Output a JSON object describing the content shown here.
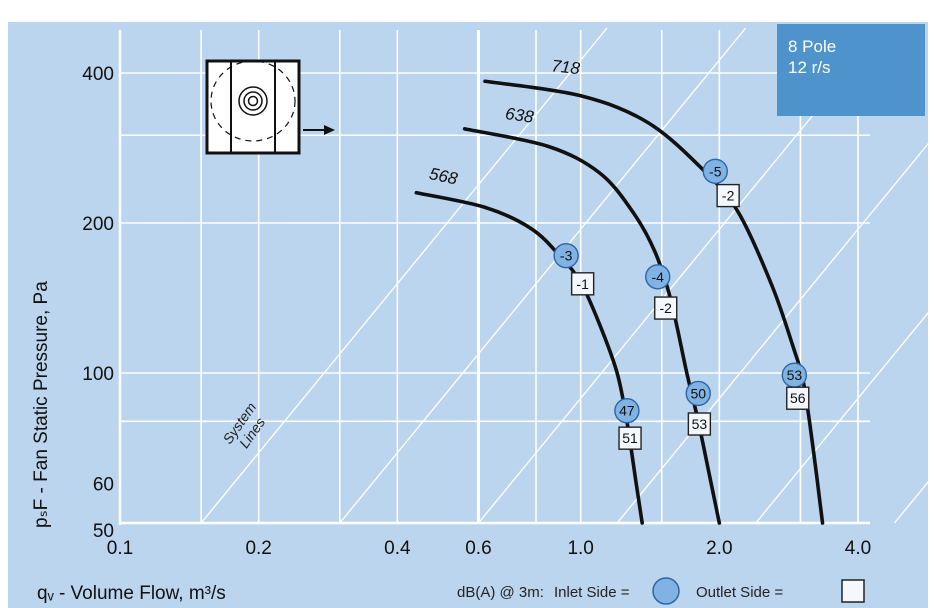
{
  "chart_data": {
    "type": "line",
    "xlabel": "qᵥ - Volume Flow, m³/s",
    "ylabel": "pₛF - Fan Static Pressure, Pa",
    "x_scale": "log",
    "y_scale": "log",
    "xlim": [
      0.1,
      4.0
    ],
    "ylim": [
      50,
      400
    ],
    "x_ticks": [
      {
        "value": 0.1,
        "label": "0.1"
      },
      {
        "value": 0.2,
        "label": "0.2"
      },
      {
        "value": 0.4,
        "label": "0.4"
      },
      {
        "value": 0.6,
        "label": "0.6"
      },
      {
        "value": 1.0,
        "label": "1.0"
      },
      {
        "value": 2.0,
        "label": "2.0"
      },
      {
        "value": 4.0,
        "label": "4.0"
      }
    ],
    "y_ticks": [
      {
        "value": 400,
        "label": "400"
      },
      {
        "value": 200,
        "label": "200"
      },
      {
        "value": 100,
        "label": "100"
      },
      {
        "value": 60,
        "label": "60"
      },
      {
        "value": 50,
        "label": "50"
      }
    ],
    "x_grid": [
      0.15,
      0.2,
      0.3,
      0.4,
      0.6,
      0.8,
      1.0,
      1.5,
      2.0,
      3.0,
      4.0
    ],
    "y_grid": [
      80,
      100,
      200,
      300,
      400
    ],
    "grid": true,
    "system_lines_label": [
      "System",
      "Lines"
    ],
    "series": [
      {
        "name": "568",
        "label": "568",
        "points": [
          [
            0.44,
            230
          ],
          [
            0.62,
            215
          ],
          [
            0.78,
            195
          ],
          [
            0.9,
            172
          ],
          [
            1.0,
            152
          ],
          [
            1.1,
            125
          ],
          [
            1.2,
            100
          ],
          [
            1.26,
            80
          ],
          [
            1.32,
            60
          ],
          [
            1.36,
            50
          ]
        ],
        "markers": [
          {
            "kind": "inlet",
            "value": "-3",
            "x": 0.93,
            "y": 172
          },
          {
            "kind": "outlet",
            "value": "-1",
            "x": 1.01,
            "y": 151
          },
          {
            "kind": "inlet",
            "value": "47",
            "x": 1.26,
            "y": 84
          },
          {
            "kind": "outlet",
            "value": "51",
            "x": 1.28,
            "y": 74
          }
        ]
      },
      {
        "name": "638",
        "label": "638",
        "points": [
          [
            0.56,
            309
          ],
          [
            0.85,
            285
          ],
          [
            1.1,
            252
          ],
          [
            1.3,
            210
          ],
          [
            1.45,
            175
          ],
          [
            1.57,
            140
          ],
          [
            1.7,
            100
          ],
          [
            1.8,
            80
          ],
          [
            1.92,
            60
          ],
          [
            2.0,
            50
          ]
        ],
        "markers": [
          {
            "kind": "inlet",
            "value": "-4",
            "x": 1.47,
            "y": 156
          },
          {
            "kind": "outlet",
            "value": "-2",
            "x": 1.53,
            "y": 135
          },
          {
            "kind": "inlet",
            "value": "50",
            "x": 1.8,
            "y": 91
          },
          {
            "kind": "outlet",
            "value": "53",
            "x": 1.81,
            "y": 79
          }
        ]
      },
      {
        "name": "718",
        "label": "718",
        "points": [
          [
            0.62,
            385
          ],
          [
            1.0,
            360
          ],
          [
            1.4,
            318
          ],
          [
            1.85,
            255
          ],
          [
            2.2,
            210
          ],
          [
            2.6,
            150
          ],
          [
            2.9,
            112
          ],
          [
            3.05,
            95
          ],
          [
            3.2,
            70
          ],
          [
            3.35,
            50
          ]
        ],
        "markers": [
          {
            "kind": "inlet",
            "value": "-5",
            "x": 1.96,
            "y": 254
          },
          {
            "kind": "outlet",
            "value": "-2",
            "x": 2.09,
            "y": 227
          },
          {
            "kind": "inlet",
            "value": "53",
            "x": 2.91,
            "y": 99
          },
          {
            "kind": "outlet",
            "value": "56",
            "x": 2.96,
            "y": 89
          }
        ]
      }
    ]
  },
  "pole_box": {
    "line1": "8 Pole",
    "line2": "12 r/s"
  },
  "legend": {
    "prefix": "dB(A) @ 3m:",
    "inlet_label": "Inlet Side =",
    "outlet_label": "Outlet Side ="
  },
  "colors": {
    "plot_bg": "#bcd5ee",
    "grid": "#ffffff",
    "curve": "#111111",
    "inlet_fill": "#80b3e3",
    "inlet_stroke": "#2d66a6",
    "outlet_fill": "#f4f7fb",
    "outlet_stroke": "#222222",
    "pole_box": "#4f93cd"
  }
}
